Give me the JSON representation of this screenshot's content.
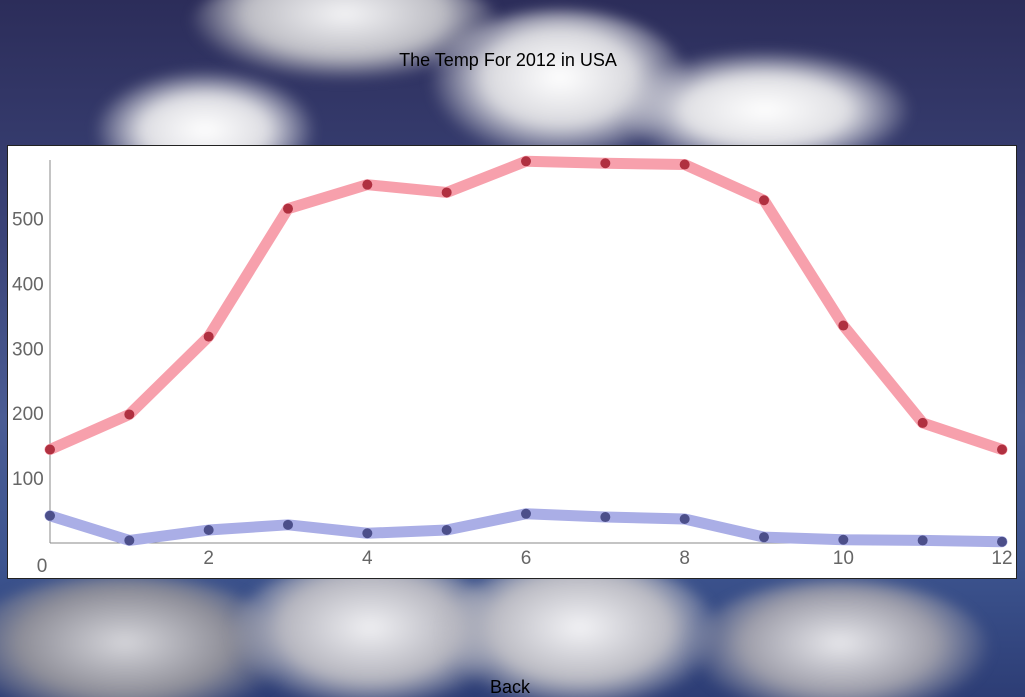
{
  "page": {
    "title": "The Temp For 2012 in USA",
    "back_label": "Back"
  },
  "colors": {
    "series_high_line": "#f7a0ac",
    "series_high_point": "#b03040",
    "series_low_line": "#aaaee6",
    "series_low_point": "#4c4f8a",
    "axis": "#888888",
    "tick_text": "#666666"
  },
  "chart_data": {
    "type": "line",
    "title": "The Temp For 2012 in USA",
    "xlabel": "",
    "ylabel": "",
    "xlim": [
      0,
      12
    ],
    "ylim": [
      0,
      590
    ],
    "x_ticks": [
      0,
      2,
      4,
      6,
      8,
      10,
      12
    ],
    "y_ticks": [
      100,
      200,
      300,
      400,
      500
    ],
    "grid": false,
    "x": [
      0,
      1,
      2,
      3,
      4,
      5,
      6,
      7,
      8,
      9,
      10,
      11,
      12
    ],
    "series": [
      {
        "values": [
          144,
          198,
          318,
          515,
          552,
          540,
          588,
          585,
          583,
          528,
          335,
          185,
          144
        ]
      },
      {
        "values": [
          42,
          4,
          20,
          28,
          15,
          20,
          45,
          40,
          37,
          9,
          5,
          4,
          2
        ]
      }
    ]
  }
}
